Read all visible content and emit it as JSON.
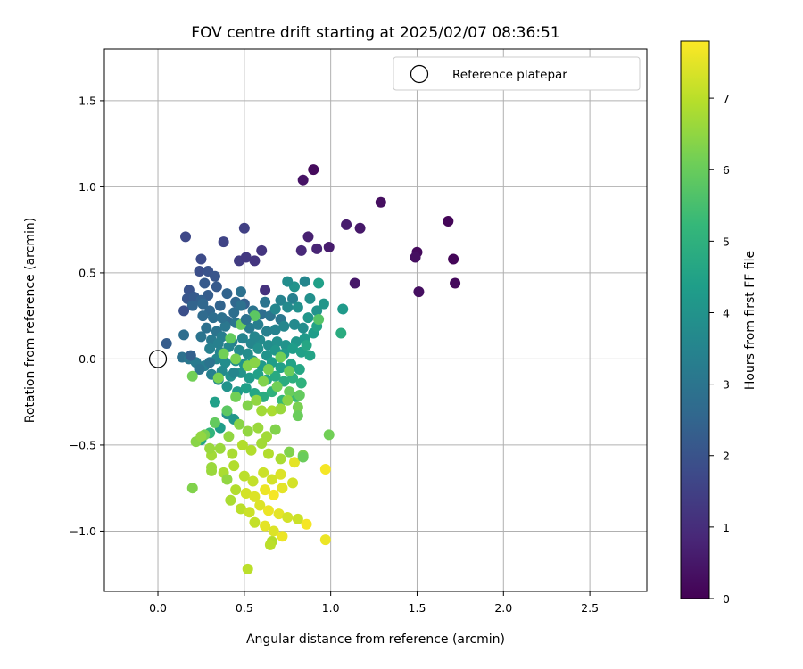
{
  "chart_data": {
    "type": "scatter",
    "title": "FOV centre drift starting at 2025/02/07 08:36:51",
    "xlabel": "Angular distance from reference (arcmin)",
    "ylabel": "Rotation from reference (arcmin)",
    "xlim": [
      -0.31,
      2.83
    ],
    "ylim": [
      -1.35,
      1.8
    ],
    "xticks": [
      "0.0",
      "0.5",
      "1.0",
      "1.5",
      "2.0",
      "2.5"
    ],
    "xtick_values": [
      0,
      0.5,
      1.0,
      1.5,
      2.0,
      2.5
    ],
    "yticks": [
      "1.5",
      "1.0",
      "0.5",
      "0.0",
      "−0.5",
      "−1.0"
    ],
    "ytick_values": [
      1.5,
      1.0,
      0.5,
      0.0,
      -0.5,
      -1.0
    ],
    "grid": true,
    "legend": {
      "placement": "top-right",
      "label": "Reference platepar",
      "marker": "open-circle",
      "x": 0.0,
      "y": 0.0
    },
    "colorbar": {
      "label": "Hours from first FF file",
      "min": 0,
      "max": 7.8,
      "ticks": [
        "0",
        "1",
        "2",
        "3",
        "4",
        "5",
        "6",
        "7"
      ],
      "tick_values": [
        0,
        1,
        2,
        3,
        4,
        5,
        6,
        7
      ],
      "colormap": "viridis"
    },
    "colormap_stops": [
      "#440154",
      "#482878",
      "#3e4989",
      "#31688e",
      "#26828e",
      "#1f9e89",
      "#35b779",
      "#6ece58",
      "#b5de2b",
      "#fde725"
    ],
    "points": [
      [
        0.9,
        1.1,
        0.2
      ],
      [
        0.84,
        1.04,
        0.4
      ],
      [
        1.29,
        0.91,
        0.3
      ],
      [
        1.68,
        0.8,
        0.1
      ],
      [
        1.09,
        0.78,
        0.6
      ],
      [
        1.17,
        0.76,
        0.5
      ],
      [
        0.87,
        0.71,
        0.7
      ],
      [
        0.83,
        0.63,
        0.9
      ],
      [
        0.92,
        0.64,
        0.8
      ],
      [
        0.99,
        0.65,
        0.6
      ],
      [
        1.5,
        0.62,
        0.2
      ],
      [
        1.49,
        0.59,
        0.3
      ],
      [
        1.71,
        0.58,
        0.1
      ],
      [
        1.72,
        0.44,
        0.2
      ],
      [
        1.51,
        0.39,
        0.3
      ],
      [
        1.14,
        0.44,
        0.5
      ],
      [
        0.6,
        0.63,
        1.2
      ],
      [
        0.5,
        0.76,
        1.5
      ],
      [
        0.16,
        0.71,
        1.7
      ],
      [
        0.38,
        0.68,
        1.6
      ],
      [
        0.47,
        0.57,
        1.4
      ],
      [
        0.51,
        0.59,
        1.3
      ],
      [
        0.56,
        0.57,
        1.2
      ],
      [
        0.25,
        0.58,
        1.8
      ],
      [
        0.24,
        0.51,
        1.9
      ],
      [
        0.29,
        0.51,
        2.0
      ],
      [
        0.33,
        0.48,
        2.1
      ],
      [
        0.18,
        0.4,
        2.0
      ],
      [
        0.62,
        0.4,
        1.1
      ],
      [
        0.27,
        0.44,
        2.2
      ],
      [
        0.29,
        0.37,
        2.3
      ],
      [
        0.34,
        0.42,
        2.2
      ],
      [
        0.17,
        0.35,
        2.1
      ],
      [
        0.21,
        0.36,
        2.2
      ],
      [
        0.25,
        0.34,
        2.4
      ],
      [
        0.4,
        0.38,
        2.5
      ],
      [
        0.45,
        0.33,
        2.6
      ],
      [
        0.2,
        0.31,
        2.5
      ],
      [
        0.15,
        0.28,
        1.9
      ],
      [
        0.3,
        0.28,
        2.6
      ],
      [
        0.36,
        0.31,
        2.5
      ],
      [
        0.5,
        0.32,
        2.4
      ],
      [
        0.26,
        0.25,
        2.7
      ],
      [
        0.32,
        0.24,
        2.8
      ],
      [
        0.4,
        0.22,
        2.7
      ],
      [
        0.44,
        0.27,
        2.8
      ],
      [
        0.48,
        0.31,
        2.9
      ],
      [
        0.55,
        0.28,
        3.0
      ],
      [
        0.6,
        0.26,
        2.8
      ],
      [
        0.65,
        0.25,
        3.0
      ],
      [
        0.71,
        0.23,
        3.1
      ],
      [
        0.28,
        0.18,
        2.9
      ],
      [
        0.34,
        0.16,
        3.0
      ],
      [
        0.39,
        0.19,
        3.1
      ],
      [
        0.45,
        0.21,
        3.0
      ],
      [
        0.53,
        0.18,
        3.2
      ],
      [
        0.58,
        0.2,
        3.3
      ],
      [
        0.63,
        0.16,
        3.4
      ],
      [
        0.68,
        0.17,
        3.5
      ],
      [
        0.73,
        0.19,
        3.6
      ],
      [
        0.79,
        0.2,
        3.7
      ],
      [
        0.84,
        0.18,
        3.8
      ],
      [
        0.15,
        0.14,
        2.8
      ],
      [
        0.25,
        0.13,
        3.0
      ],
      [
        0.31,
        0.11,
        3.2
      ],
      [
        0.37,
        0.13,
        3.3
      ],
      [
        0.43,
        0.1,
        3.4
      ],
      [
        0.49,
        0.12,
        3.5
      ],
      [
        0.54,
        0.09,
        3.6
      ],
      [
        0.59,
        0.11,
        3.7
      ],
      [
        0.64,
        0.08,
        3.8
      ],
      [
        0.69,
        0.1,
        3.9
      ],
      [
        0.74,
        0.08,
        4.0
      ],
      [
        0.8,
        0.1,
        4.1
      ],
      [
        0.85,
        0.12,
        4.2
      ],
      [
        0.9,
        0.15,
        4.3
      ],
      [
        0.05,
        0.09,
        2.3
      ],
      [
        0.3,
        0.06,
        3.4
      ],
      [
        0.36,
        0.04,
        3.5
      ],
      [
        0.41,
        0.07,
        3.6
      ],
      [
        0.47,
        0.05,
        3.7
      ],
      [
        0.52,
        0.03,
        3.8
      ],
      [
        0.58,
        0.06,
        3.9
      ],
      [
        0.63,
        0.02,
        4.0
      ],
      [
        0.68,
        0.05,
        4.1
      ],
      [
        0.73,
        0.03,
        4.2
      ],
      [
        0.78,
        0.06,
        4.3
      ],
      [
        0.83,
        0.04,
        4.4
      ],
      [
        0.88,
        0.02,
        4.5
      ],
      [
        0.14,
        0.01,
        2.9
      ],
      [
        0.18,
        0.0,
        3.1
      ],
      [
        0.22,
        -0.02,
        3.2
      ],
      [
        0.27,
        -0.04,
        3.3
      ],
      [
        0.34,
        0.0,
        3.6
      ],
      [
        0.39,
        -0.02,
        3.8
      ],
      [
        0.45,
        -0.01,
        3.9
      ],
      [
        0.5,
        -0.03,
        4.0
      ],
      [
        0.55,
        -0.01,
        4.1
      ],
      [
        0.6,
        -0.04,
        4.2
      ],
      [
        0.66,
        -0.02,
        4.3
      ],
      [
        0.71,
        -0.05,
        4.4
      ],
      [
        0.77,
        -0.03,
        4.5
      ],
      [
        0.82,
        -0.06,
        4.6
      ],
      [
        0.31,
        -0.09,
        3.4
      ],
      [
        0.24,
        -0.06,
        3.0
      ],
      [
        0.37,
        -0.07,
        3.7
      ],
      [
        0.42,
        -0.1,
        3.9
      ],
      [
        0.48,
        -0.08,
        4.0
      ],
      [
        0.53,
        -0.11,
        4.2
      ],
      [
        0.58,
        -0.09,
        4.4
      ],
      [
        0.63,
        -0.12,
        4.6
      ],
      [
        0.68,
        -0.1,
        4.7
      ],
      [
        0.73,
        -0.13,
        4.8
      ],
      [
        0.78,
        -0.11,
        4.9
      ],
      [
        0.83,
        -0.14,
        5.0
      ],
      [
        0.35,
        -0.12,
        3.7
      ],
      [
        0.4,
        -0.16,
        4.0
      ],
      [
        0.46,
        -0.19,
        4.2
      ],
      [
        0.51,
        -0.17,
        4.4
      ],
      [
        0.56,
        -0.2,
        4.6
      ],
      [
        0.61,
        -0.22,
        4.8
      ],
      [
        0.66,
        -0.19,
        5.0
      ],
      [
        0.72,
        -0.24,
        5.2
      ],
      [
        0.8,
        -0.22,
        5.3
      ],
      [
        0.92,
        0.28,
        4.0
      ],
      [
        0.96,
        0.32,
        4.1
      ],
      [
        0.88,
        0.35,
        3.9
      ],
      [
        0.93,
        0.44,
        4.4
      ],
      [
        0.79,
        0.42,
        4.0
      ],
      [
        0.75,
        0.45,
        3.8
      ],
      [
        0.85,
        0.45,
        3.6
      ],
      [
        0.78,
        0.35,
        3.4
      ],
      [
        1.07,
        0.29,
        4.2
      ],
      [
        1.06,
        0.15,
        4.8
      ],
      [
        0.68,
        0.29,
        3.6
      ],
      [
        0.71,
        0.34,
        3.5
      ],
      [
        0.75,
        0.3,
        3.7
      ],
      [
        0.81,
        0.3,
        3.9
      ],
      [
        0.87,
        0.24,
        4.1
      ],
      [
        0.92,
        0.19,
        4.5
      ],
      [
        0.86,
        0.08,
        4.6
      ],
      [
        0.93,
        0.23,
        5.7
      ],
      [
        0.56,
        0.25,
        5.8
      ],
      [
        0.48,
        0.2,
        6.0
      ],
      [
        0.42,
        0.12,
        5.9
      ],
      [
        0.38,
        0.03,
        6.1
      ],
      [
        0.45,
        0.0,
        6.2
      ],
      [
        0.52,
        -0.04,
        6.3
      ],
      [
        0.64,
        -0.06,
        6.2
      ],
      [
        0.71,
        0.01,
        6.1
      ],
      [
        0.76,
        -0.07,
        6.0
      ],
      [
        0.56,
        -0.02,
        6.4
      ],
      [
        0.61,
        -0.13,
        6.3
      ],
      [
        0.69,
        -0.16,
        6.1
      ],
      [
        0.76,
        -0.19,
        6.0
      ],
      [
        0.82,
        -0.21,
        5.9
      ],
      [
        0.33,
        -0.25,
        4.4
      ],
      [
        0.4,
        -0.32,
        3.9
      ],
      [
        0.44,
        -0.35,
        4.1
      ],
      [
        0.36,
        -0.4,
        4.3
      ],
      [
        0.25,
        -0.47,
        4.6
      ],
      [
        0.3,
        -0.43,
        5.1
      ],
      [
        0.2,
        -0.1,
        6.1
      ],
      [
        0.35,
        -0.11,
        6.2
      ],
      [
        0.45,
        -0.22,
        6.1
      ],
      [
        0.4,
        -0.3,
        5.8
      ],
      [
        0.33,
        -0.37,
        5.9
      ],
      [
        0.27,
        -0.44,
        6.2
      ],
      [
        0.22,
        -0.48,
        6.4
      ],
      [
        0.52,
        -0.27,
        6.3
      ],
      [
        0.57,
        -0.24,
        6.5
      ],
      [
        0.6,
        -0.3,
        6.7
      ],
      [
        0.66,
        -0.3,
        6.8
      ],
      [
        0.71,
        -0.29,
        6.6
      ],
      [
        0.75,
        -0.24,
        6.4
      ],
      [
        0.81,
        -0.28,
        6.2
      ],
      [
        0.81,
        -0.33,
        6.0
      ],
      [
        0.47,
        -0.38,
        6.4
      ],
      [
        0.52,
        -0.42,
        6.5
      ],
      [
        0.58,
        -0.4,
        6.6
      ],
      [
        0.63,
        -0.45,
        6.7
      ],
      [
        0.68,
        -0.41,
        6.3
      ],
      [
        0.41,
        -0.45,
        6.5
      ],
      [
        0.36,
        -0.52,
        6.6
      ],
      [
        0.31,
        -0.56,
        6.7
      ],
      [
        0.43,
        -0.55,
        6.8
      ],
      [
        0.49,
        -0.5,
        6.9
      ],
      [
        0.54,
        -0.53,
        6.9
      ],
      [
        0.6,
        -0.49,
        6.7
      ],
      [
        0.64,
        -0.55,
        6.9
      ],
      [
        0.71,
        -0.58,
        6.8
      ],
      [
        0.76,
        -0.54,
        6.3
      ],
      [
        0.84,
        -0.56,
        6.2
      ],
      [
        0.99,
        -0.44,
        6.1
      ],
      [
        0.31,
        -0.63,
        6.6
      ],
      [
        0.38,
        -0.66,
        6.8
      ],
      [
        0.44,
        -0.62,
        6.9
      ],
      [
        0.5,
        -0.68,
        7.0
      ],
      [
        0.55,
        -0.71,
        7.1
      ],
      [
        0.61,
        -0.66,
        7.2
      ],
      [
        0.66,
        -0.7,
        7.3
      ],
      [
        0.71,
        -0.67,
        7.4
      ],
      [
        0.79,
        -0.6,
        7.5
      ],
      [
        0.97,
        -0.64,
        7.7
      ],
      [
        0.84,
        -0.57,
        6.0
      ],
      [
        0.31,
        -0.65,
        6.6
      ],
      [
        0.2,
        -0.75,
        6.3
      ],
      [
        0.4,
        -0.7,
        6.5
      ],
      [
        0.45,
        -0.76,
        6.9
      ],
      [
        0.51,
        -0.78,
        7.3
      ],
      [
        0.56,
        -0.8,
        7.4
      ],
      [
        0.62,
        -0.76,
        7.6
      ],
      [
        0.67,
        -0.79,
        7.7
      ],
      [
        0.72,
        -0.75,
        7.5
      ],
      [
        0.78,
        -0.72,
        7.3
      ],
      [
        0.42,
        -0.82,
        6.8
      ],
      [
        0.48,
        -0.87,
        7.0
      ],
      [
        0.53,
        -0.89,
        7.2
      ],
      [
        0.59,
        -0.85,
        7.4
      ],
      [
        0.64,
        -0.88,
        7.6
      ],
      [
        0.7,
        -0.9,
        7.5
      ],
      [
        0.75,
        -0.92,
        7.3
      ],
      [
        0.81,
        -0.93,
        7.2
      ],
      [
        0.86,
        -0.96,
        7.7
      ],
      [
        0.56,
        -0.95,
        7.1
      ],
      [
        0.62,
        -0.97,
        7.5
      ],
      [
        0.67,
        -1.0,
        7.4
      ],
      [
        0.72,
        -1.03,
        7.6
      ],
      [
        0.66,
        -1.06,
        6.9
      ],
      [
        0.65,
        -1.08,
        7.0
      ],
      [
        0.97,
        -1.05,
        7.6
      ],
      [
        0.52,
        -1.22,
        7.0
      ],
      [
        0.25,
        -0.45,
        6.5
      ],
      [
        0.3,
        -0.52,
        6.6
      ],
      [
        0.44,
        -0.08,
        3.6
      ],
      [
        0.48,
        0.39,
        2.9
      ],
      [
        0.51,
        0.23,
        2.9
      ],
      [
        0.3,
        -0.02,
        3.0
      ],
      [
        0.56,
        0.13,
        3.6
      ],
      [
        0.62,
        0.33,
        3.0
      ],
      [
        0.26,
        0.32,
        2.6
      ],
      [
        0.19,
        0.02,
        2.4
      ],
      [
        0.37,
        0.24,
        2.9
      ],
      [
        0.35,
        0.09,
        3.4
      ]
    ]
  }
}
